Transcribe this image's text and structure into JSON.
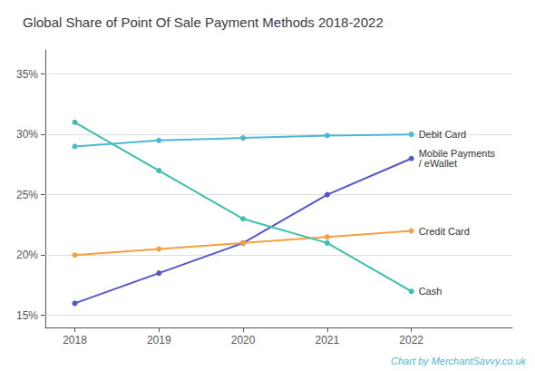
{
  "chart_data": {
    "type": "line",
    "title": "Global Share of Point Of Sale Payment Methods 2018-2022",
    "x": [
      2018,
      2019,
      2020,
      2021,
      2022
    ],
    "series": [
      {
        "name": "Debit Card",
        "color": "#4db8d4",
        "marker": "circle",
        "values": [
          29,
          29.5,
          29.7,
          29.9,
          30
        ]
      },
      {
        "name": "Mobile Payments\n/ eWallet",
        "color": "#5555cc",
        "marker": "circle",
        "values": [
          16,
          18.5,
          21,
          25,
          28
        ]
      },
      {
        "name": "Credit Card",
        "color": "#f4a040",
        "marker": "circle",
        "values": [
          20,
          20.5,
          21,
          21.5,
          22
        ]
      },
      {
        "name": "Cash",
        "color": "#3dbfb0",
        "marker": "circle",
        "values": [
          31,
          27,
          23,
          21,
          17
        ]
      }
    ],
    "xlim": [
      2017.65,
      2023.2
    ],
    "xticks": [
      2018,
      2019,
      2020,
      2021,
      2022
    ],
    "ylim": [
      14,
      37
    ],
    "yticks": [
      {
        "value": 15,
        "label": "15%"
      },
      {
        "value": 20,
        "label": "20%"
      },
      {
        "value": 25,
        "label": "25%"
      },
      {
        "value": 30,
        "label": "30%"
      },
      {
        "value": 35,
        "label": "35%"
      }
    ],
    "grid": true,
    "annotations": [
      "Chart by MerchantSavvy.co.uk"
    ]
  }
}
